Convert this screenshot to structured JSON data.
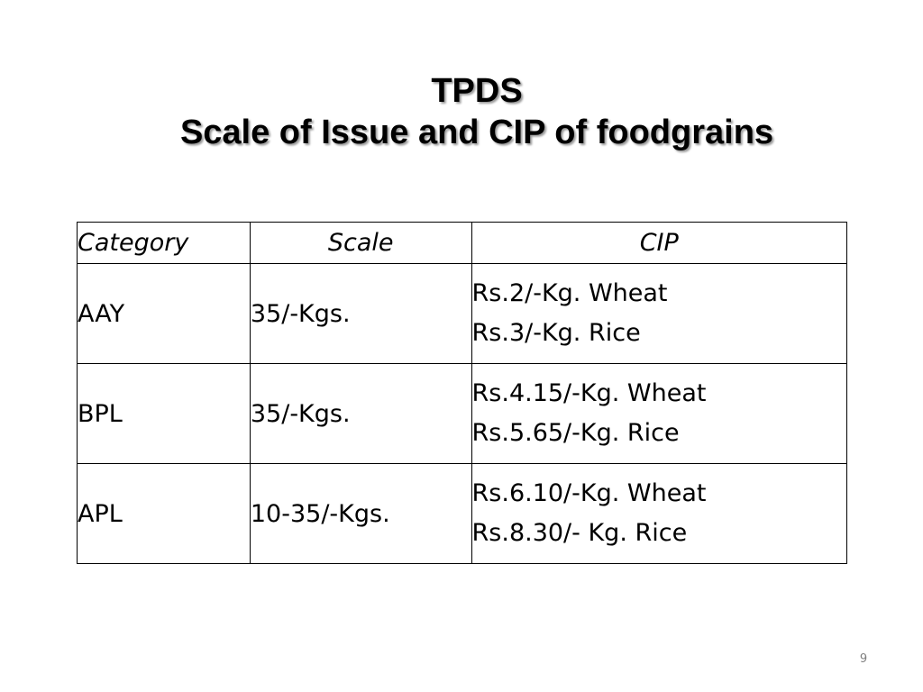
{
  "slide": {
    "title_line1": "TPDS",
    "title_line2": "Scale of Issue and CIP of foodgrains",
    "page_number": "9"
  },
  "table": {
    "headers": [
      "Category",
      "Scale",
      "CIP"
    ],
    "rows": [
      {
        "category": "AAY",
        "scale": "35/-Kgs.",
        "cip": [
          "Rs.2/-Kg. Wheat",
          "Rs.3/-Kg. Rice"
        ]
      },
      {
        "category": "BPL",
        "scale": "35/-Kgs.",
        "cip": [
          "Rs.4.15/-Kg. Wheat",
          "Rs.5.65/-Kg. Rice"
        ]
      },
      {
        "category": "APL",
        "scale": "10-35/-Kgs.",
        "cip": [
          "Rs.6.10/-Kg. Wheat",
          "Rs.8.30/- Kg. Rice"
        ]
      }
    ]
  }
}
